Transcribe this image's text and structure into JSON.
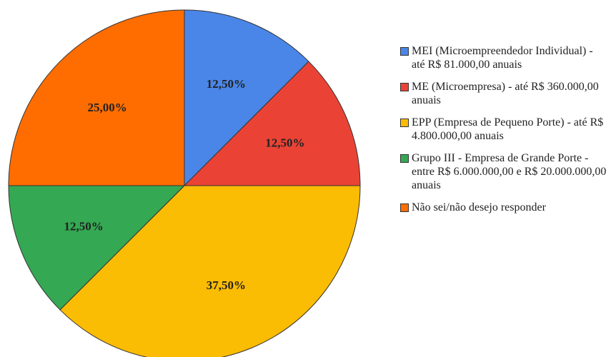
{
  "chart_data": {
    "type": "pie",
    "categories": [
      "MEI (Microempreendedor Individual) - até R$ 81.000,00 anuais",
      "ME (Microempresa) - até R$ 360.000,00 anuais",
      "EPP (Empresa de Pequeno Porte) - até R$ 4.800.000,00 anuais",
      "Grupo III - Empresa de Grande Porte - entre R$ 6.000.000,00 e R$ 20.000.000,00 anuais",
      "Não sei/não desejo responder"
    ],
    "values": [
      12.5,
      12.5,
      37.5,
      12.5,
      25
    ],
    "value_labels": [
      "12,50%",
      "12,50%",
      "37,50%",
      "12,50%",
      "25,00%"
    ],
    "colors": [
      "#4a86e8",
      "#ea4335",
      "#fbbc04",
      "#34a853",
      "#ff6d01"
    ],
    "legend": "right"
  }
}
